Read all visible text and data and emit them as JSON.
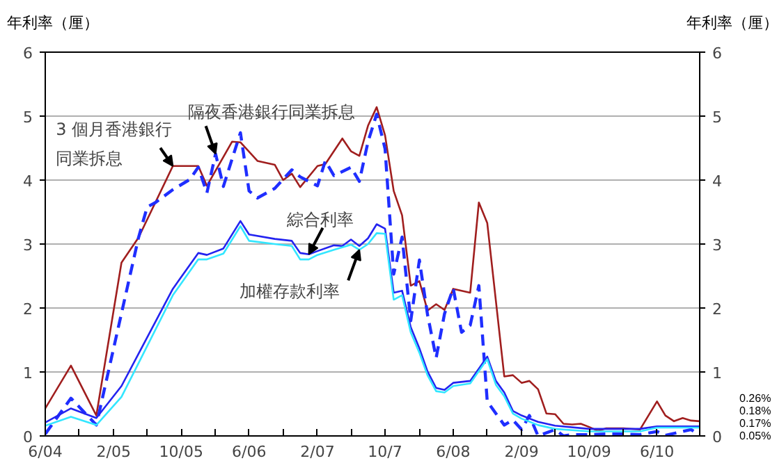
{
  "chart_data": {
    "type": "line",
    "ylabel": "年利率（厘）",
    "y2label": "年利率（厘）",
    "xlim": [
      "2004-06",
      "2010-11"
    ],
    "xticks": [
      {
        "value": "2004-06",
        "label": "6/04"
      },
      {
        "value": "2004-10",
        "label": null
      },
      {
        "value": "2005-02",
        "label": "2/05"
      },
      {
        "value": "2005-06",
        "label": null
      },
      {
        "value": "2005-10",
        "label": "10/05"
      },
      {
        "value": "2006-02",
        "label": null
      },
      {
        "value": "2006-06",
        "label": "6/06"
      },
      {
        "value": "2006-10",
        "label": null
      },
      {
        "value": "2007-02",
        "label": "2/07"
      },
      {
        "value": "2007-06",
        "label": null
      },
      {
        "value": "2007-10",
        "label": "10/7"
      },
      {
        "value": "2008-02",
        "label": null
      },
      {
        "value": "2008-06",
        "label": "6/08"
      },
      {
        "value": "2008-10",
        "label": null
      },
      {
        "value": "2009-02",
        "label": "2/09"
      },
      {
        "value": "2009-06",
        "label": null
      },
      {
        "value": "2009-10",
        "label": "10/09"
      },
      {
        "value": "2010-02",
        "label": null
      },
      {
        "value": "2010-06",
        "label": "6/10"
      }
    ],
    "ylim": [
      0,
      6
    ],
    "yticks": [
      0,
      1,
      2,
      3,
      4,
      5,
      6
    ],
    "y2lim": [
      0,
      6
    ],
    "y2ticks": [
      0,
      1,
      2,
      3,
      4,
      5,
      6
    ],
    "grid": "y",
    "legend": false,
    "marker": "none",
    "series": [
      {
        "name": "3 個月香港銀行同業拆息",
        "color": "#a01e1e",
        "line_style": "solid",
        "x": [
          "2004-06",
          "2004-09",
          "2004-12",
          "2005-03",
          "2005-05",
          "2005-09",
          "2005-12",
          "2006-01",
          "2006-04",
          "2006-05",
          "2006-07",
          "2006-09",
          "2006-10",
          "2006-11",
          "2006-12",
          "2007-02",
          "2007-03",
          "2007-05",
          "2007-06",
          "2007-07",
          "2007-08",
          "2007-09",
          "2007-10",
          "2007-11",
          "2007-12",
          "2008-01",
          "2008-02",
          "2008-03",
          "2008-04",
          "2008-05",
          "2008-06",
          "2008-08",
          "2008-09",
          "2008-10",
          "2008-12",
          "2009-01",
          "2009-02",
          "2009-03",
          "2009-04",
          "2009-05",
          "2009-06",
          "2009-07",
          "2009-08",
          "2009-09",
          "2009-10",
          "2009-11",
          "2009-12",
          "2010-02",
          "2010-04",
          "2010-06",
          "2010-07",
          "2010-08",
          "2010-09",
          "2010-10",
          "2010-11"
        ],
        "values": [
          0.43,
          1.1,
          0.32,
          2.71,
          3.1,
          4.22,
          4.22,
          3.91,
          4.6,
          4.59,
          4.3,
          4.24,
          4.0,
          4.1,
          3.89,
          4.22,
          4.25,
          4.65,
          4.45,
          4.38,
          4.85,
          5.14,
          4.7,
          3.83,
          3.45,
          2.35,
          2.42,
          1.96,
          2.06,
          1.97,
          2.3,
          2.24,
          3.65,
          3.33,
          0.93,
          0.95,
          0.83,
          0.86,
          0.73,
          0.35,
          0.34,
          0.19,
          0.18,
          0.19,
          0.14,
          0.08,
          0.12,
          0.12,
          0.1,
          0.54,
          0.32,
          0.23,
          0.28,
          0.24,
          0.23
        ]
      },
      {
        "name": "隔夜香港銀行同業拆息",
        "color": "#1f2eff",
        "line_style": "dashed",
        "x": [
          "2004-06",
          "2004-09",
          "2004-12",
          "2005-05",
          "2005-06",
          "2005-07",
          "2005-09",
          "2005-11",
          "2005-12",
          "2006-01",
          "2006-02",
          "2006-03",
          "2006-05",
          "2006-06",
          "2006-07",
          "2006-09",
          "2006-11",
          "2006-12",
          "2007-02",
          "2007-03",
          "2007-04",
          "2007-06",
          "2007-07",
          "2007-08",
          "2007-09",
          "2007-10",
          "2007-11",
          "2007-12",
          "2008-01",
          "2008-02",
          "2008-03",
          "2008-04",
          "2008-05",
          "2008-06",
          "2008-07",
          "2008-08",
          "2008-09",
          "2008-10",
          "2008-11",
          "2008-12",
          "2009-01",
          "2009-02",
          "2009-03",
          "2009-04",
          "2009-06",
          "2009-07",
          "2009-08",
          "2009-10",
          "2009-12",
          "2010-02",
          "2010-04",
          "2010-06",
          "2010-07",
          "2010-09",
          "2010-10",
          "2010-11"
        ],
        "values": [
          0.03,
          0.59,
          0.17,
          3.1,
          3.58,
          3.65,
          3.85,
          4.01,
          4.2,
          3.8,
          4.41,
          3.9,
          4.74,
          3.83,
          3.72,
          3.87,
          4.16,
          4.05,
          3.91,
          4.3,
          4.07,
          4.2,
          3.98,
          4.6,
          5.03,
          4.49,
          2.53,
          3.11,
          1.8,
          2.75,
          1.9,
          1.22,
          1.91,
          2.31,
          1.62,
          1.73,
          2.35,
          0.54,
          0.35,
          0.17,
          0.25,
          0.1,
          0.32,
          0.0,
          0.1,
          0.0,
          0.02,
          0.02,
          0.03,
          0.03,
          0.02,
          0.07,
          0.01,
          0.07,
          0.1,
          0.01
        ]
      },
      {
        "name": "綜合利率",
        "color": "#2323f0",
        "line_style": "solid",
        "x": [
          "2004-06",
          "2004-09",
          "2004-12",
          "2005-03",
          "2005-09",
          "2005-12",
          "2006-01",
          "2006-03",
          "2006-05",
          "2006-06",
          "2006-09",
          "2006-11",
          "2006-12",
          "2007-01",
          "2007-02",
          "2007-04",
          "2007-05",
          "2007-06",
          "2007-07",
          "2007-08",
          "2007-09",
          "2007-10",
          "2007-11",
          "2007-12",
          "2008-01",
          "2008-02",
          "2008-03",
          "2008-04",
          "2008-05",
          "2008-06",
          "2008-08",
          "2008-10",
          "2008-11",
          "2008-12",
          "2009-01",
          "2009-02",
          "2009-04",
          "2009-06",
          "2009-10",
          "2010-04",
          "2010-06",
          "2010-11"
        ],
        "values": [
          0.21,
          0.43,
          0.28,
          0.78,
          2.3,
          2.86,
          2.83,
          2.93,
          3.36,
          3.15,
          3.08,
          3.05,
          2.86,
          2.84,
          2.89,
          2.98,
          2.97,
          3.07,
          2.97,
          3.09,
          3.31,
          3.24,
          2.24,
          2.27,
          1.7,
          1.37,
          1.01,
          0.75,
          0.72,
          0.83,
          0.86,
          1.24,
          0.86,
          0.68,
          0.39,
          0.32,
          0.22,
          0.16,
          0.11,
          0.11,
          0.15,
          0.15
        ]
      },
      {
        "name": "加權存款利率",
        "color": "#33e6ff",
        "line_style": "solid",
        "x": [
          "2004-06",
          "2004-09",
          "2004-12",
          "2005-03",
          "2005-09",
          "2005-12",
          "2006-01",
          "2006-03",
          "2006-05",
          "2006-06",
          "2006-09",
          "2006-11",
          "2006-12",
          "2007-01",
          "2007-02",
          "2007-04",
          "2007-06",
          "2007-07",
          "2007-08",
          "2007-09",
          "2007-10",
          "2007-11",
          "2007-12",
          "2008-01",
          "2008-02",
          "2008-03",
          "2008-04",
          "2008-05",
          "2008-06",
          "2008-08",
          "2008-10",
          "2008-11",
          "2008-12",
          "2009-01",
          "2009-02",
          "2009-04",
          "2009-06",
          "2009-10",
          "2010-04",
          "2010-06",
          "2010-11"
        ],
        "values": [
          0.16,
          0.3,
          0.17,
          0.61,
          2.2,
          2.76,
          2.76,
          2.85,
          3.28,
          3.05,
          3.0,
          2.97,
          2.76,
          2.76,
          2.83,
          2.91,
          2.99,
          2.91,
          3.0,
          3.17,
          3.16,
          2.13,
          2.2,
          1.62,
          1.3,
          0.95,
          0.7,
          0.68,
          0.78,
          0.82,
          1.2,
          0.8,
          0.62,
          0.35,
          0.27,
          0.17,
          0.11,
          0.07,
          0.07,
          0.13,
          0.13
        ]
      }
    ],
    "annotations": [
      "0.26%",
      "0.18%",
      "0.17%",
      "0.05%"
    ]
  }
}
